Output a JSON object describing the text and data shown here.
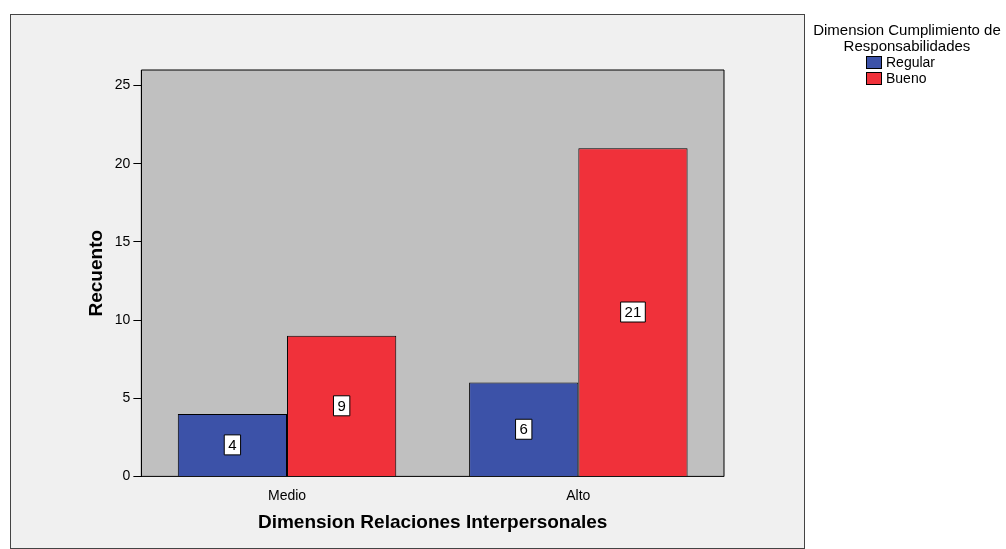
{
  "chart_data": {
    "type": "bar",
    "xlabel": "Dimension Relaciones Interpersonales",
    "ylabel": "Recuento",
    "legend_title": "Dimension Cumplimiento de Responsabilidades",
    "categories": [
      "Medio",
      "Alto"
    ],
    "series": [
      {
        "name": "Regular",
        "color": "#3c52a8",
        "values": [
          4,
          6
        ]
      },
      {
        "name": "Bueno",
        "color": "#f0313a",
        "values": [
          9,
          21
        ]
      }
    ],
    "ylim": [
      0,
      26
    ],
    "yticks": [
      0,
      5,
      10,
      15,
      20,
      25
    ],
    "grid": false,
    "legend": "top right",
    "data_labels": true
  }
}
